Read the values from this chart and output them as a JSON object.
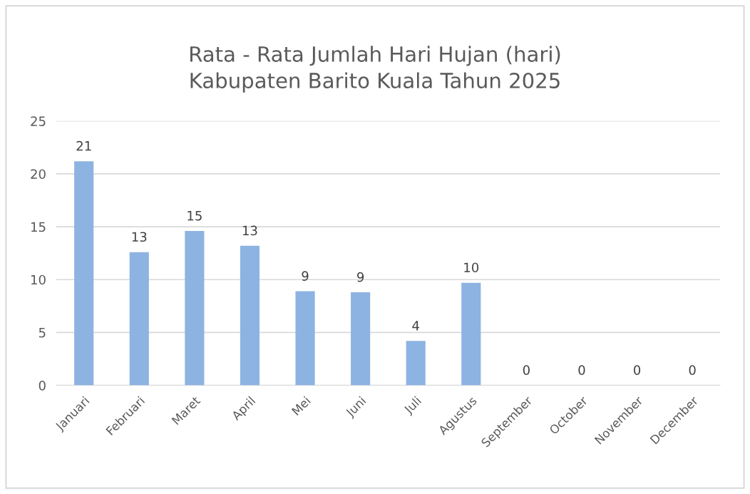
{
  "chart_data": {
    "type": "bar",
    "title": "Rata - Rata Jumlah Hari Hujan (hari)\nKabupaten Barito Kuala Tahun 2025",
    "categories": [
      "Januari",
      "Februari",
      "Maret",
      "April",
      "Mei",
      "Juni",
      "Juli",
      "Agustus",
      "September",
      "October",
      "November",
      "December"
    ],
    "values": [
      21.2,
      12.6,
      14.6,
      13.2,
      8.9,
      8.8,
      4.2,
      9.7,
      0,
      0,
      0,
      0
    ],
    "value_labels": [
      "21",
      "13",
      "15",
      "13",
      "9",
      "9",
      "4",
      "10",
      "0",
      "0",
      "0",
      "0"
    ],
    "color": "#8db3e2",
    "ylim": [
      0,
      25
    ],
    "yticks": [
      0,
      5,
      10,
      15,
      20,
      25
    ],
    "grid": "y"
  }
}
